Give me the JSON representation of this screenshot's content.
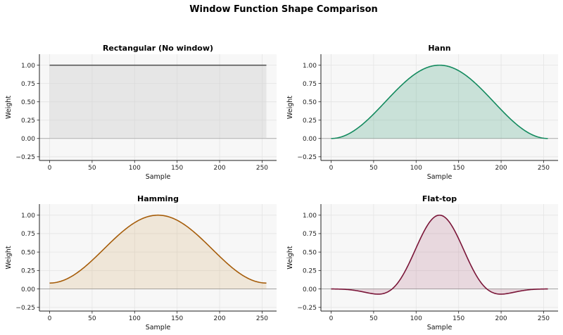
{
  "figure_title": "Window Function Shape Comparison",
  "chart_data": [
    {
      "type": "area",
      "title": "Rectangular (No window)",
      "xlabel": "Sample",
      "ylabel": "Weight",
      "N": 256,
      "window": "rectangular",
      "x_range": [
        0,
        255
      ],
      "xlim": [
        -12,
        267
      ],
      "ylim": [
        -0.3,
        1.15
      ],
      "xticks": [
        0,
        50,
        100,
        150,
        200,
        250
      ],
      "yticks": [
        -0.25,
        0.0,
        0.25,
        0.5,
        0.75,
        1.0
      ],
      "ytick_labels": [
        "−0.25",
        "0.00",
        "0.25",
        "0.50",
        "0.75",
        "1.00"
      ],
      "line_color": "#4d4d4d",
      "fill_color": "#cccccc",
      "grid": true
    },
    {
      "type": "area",
      "title": "Hann",
      "xlabel": "Sample",
      "ylabel": "Weight",
      "N": 256,
      "window": "hann",
      "x_range": [
        0,
        255
      ],
      "xlim": [
        -12,
        267
      ],
      "ylim": [
        -0.3,
        1.15
      ],
      "xticks": [
        0,
        50,
        100,
        150,
        200,
        250
      ],
      "yticks": [
        -0.25,
        0.0,
        0.25,
        0.5,
        0.75,
        1.0
      ],
      "ytick_labels": [
        "−0.25",
        "0.00",
        "0.25",
        "0.50",
        "0.75",
        "1.00"
      ],
      "line_color": "#138a5e",
      "fill_color": "#138a5e",
      "grid": true
    },
    {
      "type": "area",
      "title": "Hamming",
      "xlabel": "Sample",
      "ylabel": "Weight",
      "N": 256,
      "window": "hamming",
      "x_range": [
        0,
        255
      ],
      "xlim": [
        -12,
        267
      ],
      "ylim": [
        -0.3,
        1.15
      ],
      "xticks": [
        0,
        50,
        100,
        150,
        200,
        250
      ],
      "yticks": [
        -0.25,
        0.0,
        0.25,
        0.5,
        0.75,
        1.0
      ],
      "ytick_labels": [
        "−0.25",
        "0.00",
        "0.25",
        "0.50",
        "0.75",
        "1.00"
      ],
      "line_color": "#a65d0a",
      "fill_color": "#d4a65e",
      "grid": true
    },
    {
      "type": "area",
      "title": "Flat-top",
      "xlabel": "Sample",
      "ylabel": "Weight",
      "N": 256,
      "window": "flattop",
      "x_range": [
        0,
        255
      ],
      "xlim": [
        -12,
        267
      ],
      "ylim": [
        -0.3,
        1.15
      ],
      "xticks": [
        0,
        50,
        100,
        150,
        200,
        250
      ],
      "yticks": [
        -0.25,
        0.0,
        0.25,
        0.5,
        0.75,
        1.0
      ],
      "ytick_labels": [
        "−0.25",
        "0.00",
        "0.25",
        "0.50",
        "0.75",
        "1.00"
      ],
      "line_color": "#7a1538",
      "fill_color": "#b0607f",
      "grid": true
    }
  ]
}
